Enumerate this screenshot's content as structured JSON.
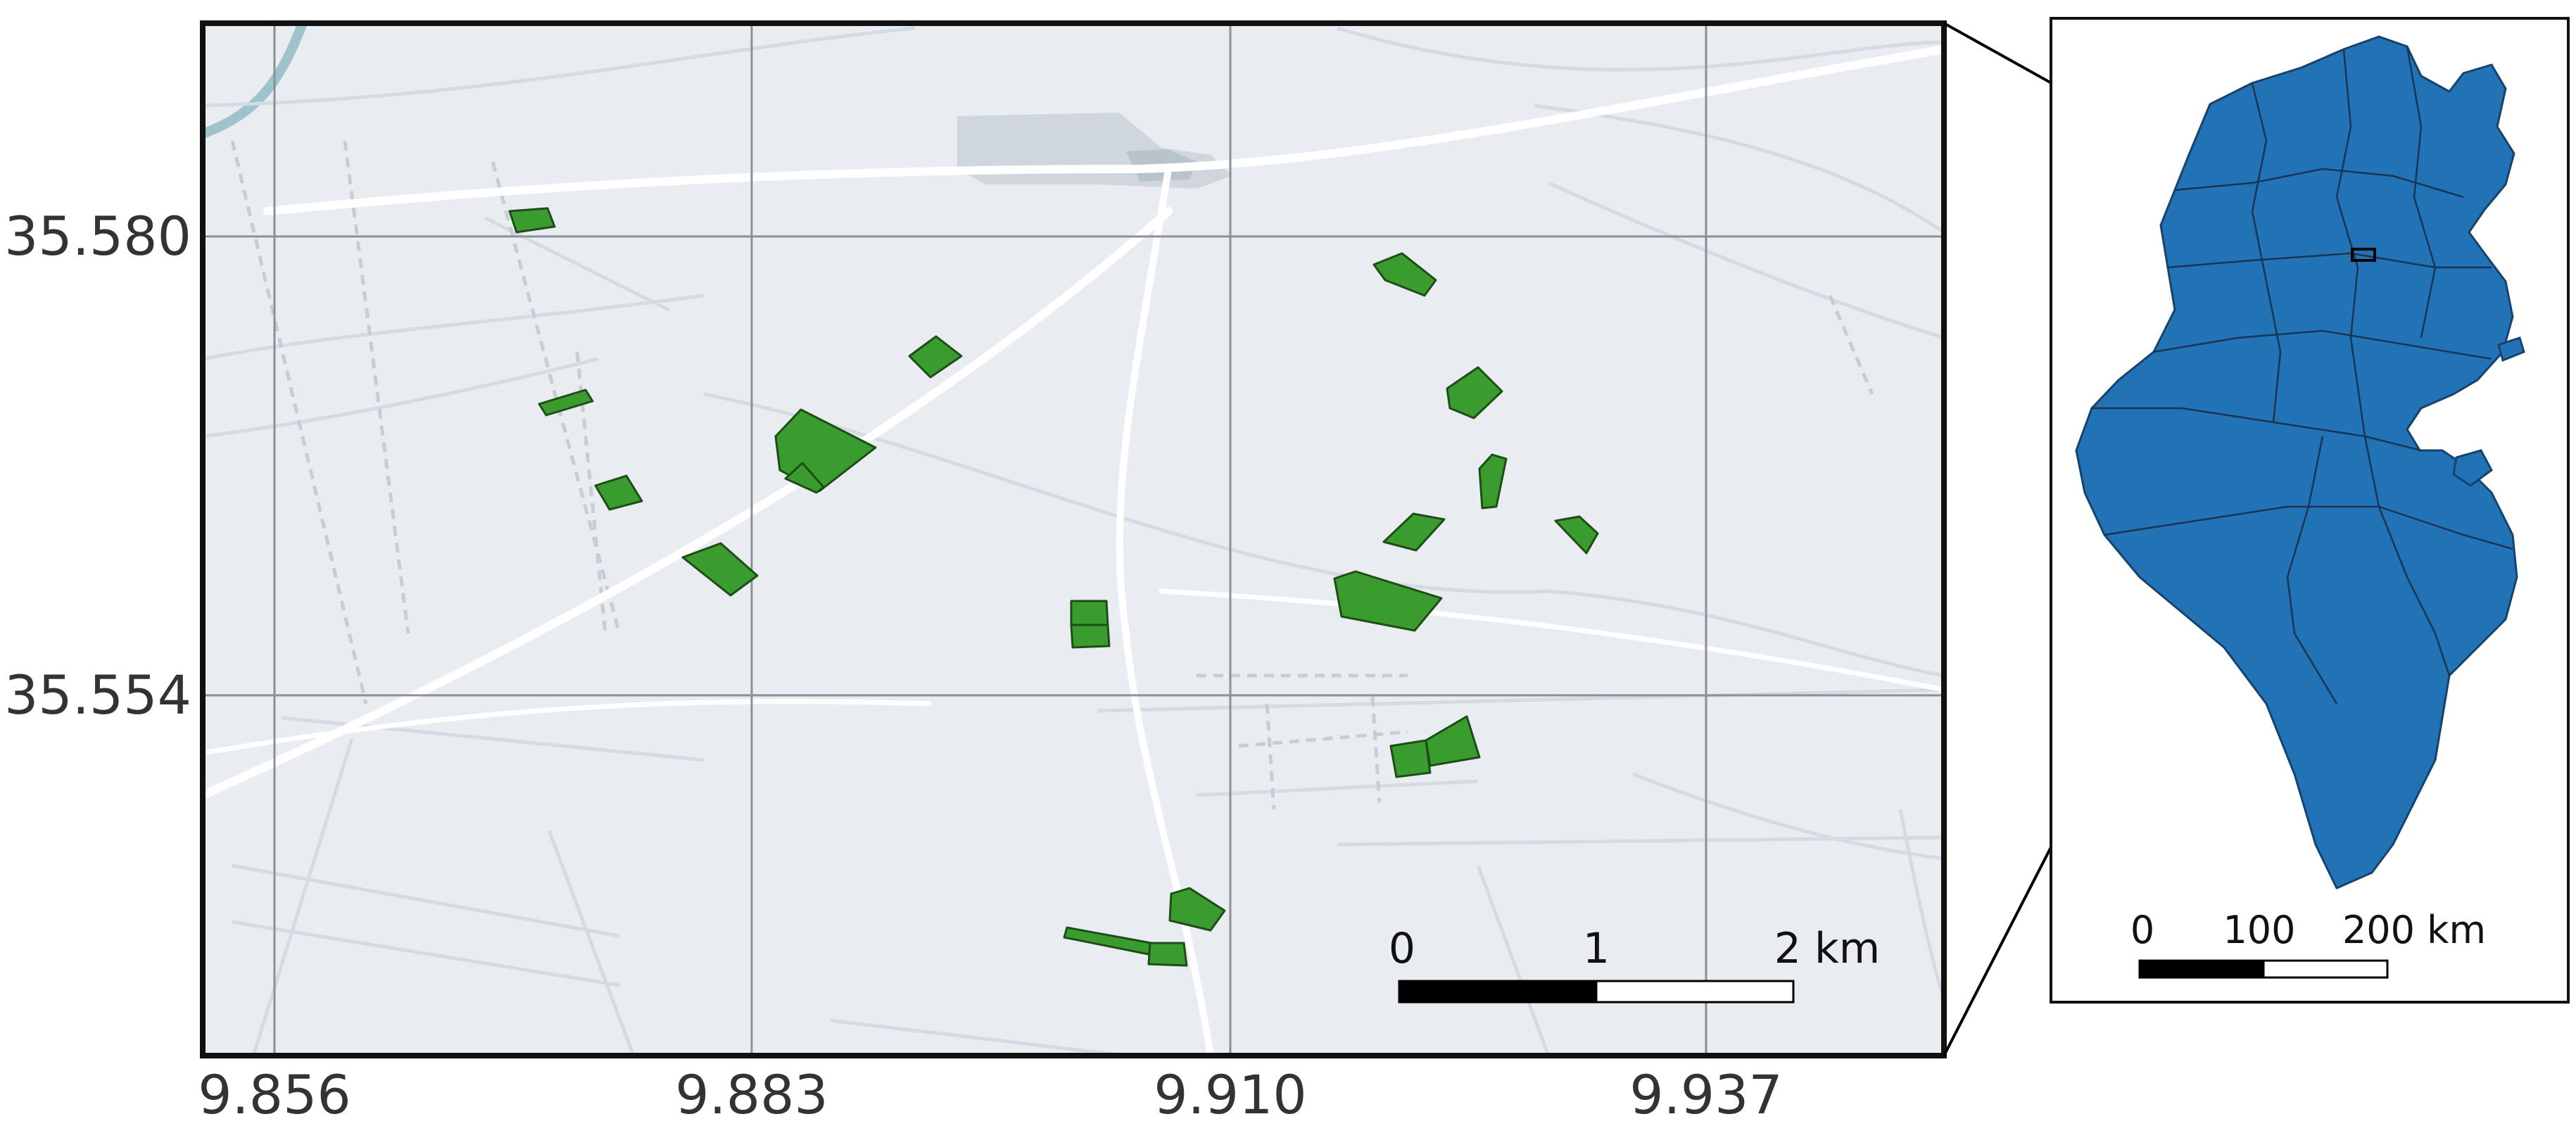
{
  "main_map": {
    "x_ticks": [
      "9.856",
      "9.883",
      "9.910",
      "9.937"
    ],
    "y_ticks": [
      "35.580",
      "35.554"
    ],
    "scale_bar": {
      "labels": [
        "0",
        "1",
        "2 km"
      ]
    },
    "colors": {
      "background": "#e9edf1",
      "roads": "#ffffff",
      "faint_roads": "#d5dbe2",
      "grid": "#8a9096",
      "parcels": "#3a9b2e",
      "parcel_outline": "#1e4d17",
      "settlement": "#cfd6dc"
    },
    "parcel_count": 20
  },
  "inset_map": {
    "region": "Tunisia",
    "scale_bar": {
      "labels": [
        "0",
        "100",
        "200 km"
      ]
    },
    "colors": {
      "country_fill": "#2273b5",
      "boundaries": "#1a3552"
    }
  }
}
